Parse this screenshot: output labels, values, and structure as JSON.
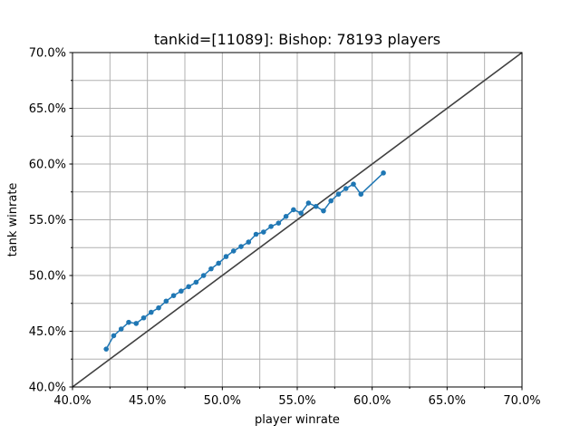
{
  "chart_data": {
    "type": "line",
    "title": "tankid=[11089]: Bishop: 78193 players",
    "xlabel": "player winrate",
    "ylabel": "tank winrate",
    "xlim": [
      0.4,
      0.7
    ],
    "ylim": [
      0.4,
      0.7
    ],
    "grid": true,
    "x_tick_values": [
      0.4,
      0.45,
      0.5,
      0.55,
      0.6,
      0.65,
      0.7
    ],
    "x_tick_labels": [
      "40.0%",
      "45.0%",
      "50.0%",
      "55.0%",
      "60.0%",
      "65.0%",
      "70.0%"
    ],
    "y_tick_values": [
      0.4,
      0.45,
      0.5,
      0.55,
      0.6,
      0.65,
      0.7
    ],
    "y_tick_labels": [
      "40.0%",
      "45.0%",
      "50.0%",
      "55.0%",
      "60.0%",
      "65.0%",
      "70.0%"
    ],
    "minor_grid_step": 0.025,
    "reference_line": {
      "x": [
        0.4,
        0.7
      ],
      "y": [
        0.4,
        0.7
      ],
      "color": "#404040"
    },
    "series": [
      {
        "color": "#1f77b4",
        "marker": "circle",
        "x": [
          0.4225,
          0.4275,
          0.4325,
          0.4375,
          0.4425,
          0.4475,
          0.4525,
          0.4575,
          0.4625,
          0.4675,
          0.4725,
          0.4775,
          0.4825,
          0.4875,
          0.4925,
          0.4975,
          0.5025,
          0.5075,
          0.5125,
          0.5175,
          0.5225,
          0.5275,
          0.5325,
          0.5375,
          0.5425,
          0.5475,
          0.5525,
          0.5575,
          0.5625,
          0.5675,
          0.5725,
          0.5775,
          0.5825,
          0.5875,
          0.5925,
          0.6075
        ],
        "y": [
          0.434,
          0.446,
          0.452,
          0.458,
          0.457,
          0.462,
          0.467,
          0.471,
          0.477,
          0.482,
          0.486,
          0.49,
          0.494,
          0.5,
          0.506,
          0.511,
          0.517,
          0.522,
          0.526,
          0.53,
          0.537,
          0.539,
          0.544,
          0.547,
          0.553,
          0.559,
          0.556,
          0.565,
          0.562,
          0.558,
          0.567,
          0.573,
          0.578,
          0.582,
          0.573,
          0.592
        ]
      }
    ]
  }
}
